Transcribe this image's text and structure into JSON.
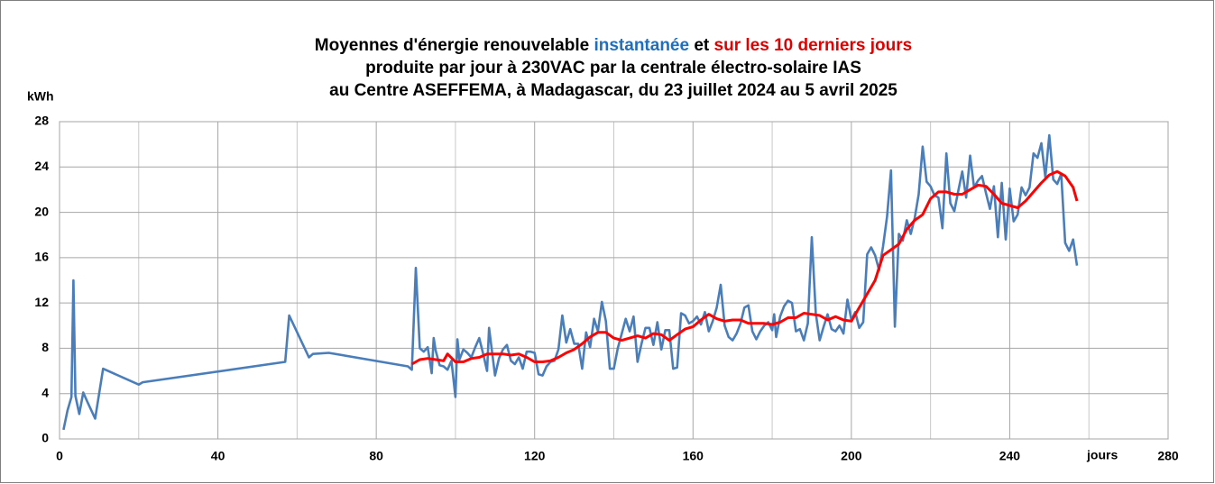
{
  "chart_data": {
    "type": "line",
    "title": {
      "line1": [
        "Moyennes d'énergie renouvelable",
        "instantanée",
        "et",
        "sur les 10 derniers jours"
      ],
      "line2": "produite par jour à 230VAC par la centrale électro-solaire  IAS",
      "line3": "au Centre ASEFFEMA, à Madagascar, du 23 juillet 2024 au 5 avril 2025"
    },
    "y_label": "kWh",
    "x_label": "jours",
    "xlim": [
      0,
      280
    ],
    "xticks": [
      0,
      40,
      80,
      120,
      160,
      200,
      240,
      280
    ],
    "x_minor_grid": [
      20,
      60,
      100,
      140,
      180,
      220,
      260
    ],
    "ylim": [
      0,
      28
    ],
    "yticks": [
      0,
      4,
      8,
      12,
      16,
      20,
      24,
      28
    ],
    "grid": true,
    "series": [
      {
        "color": "#4a7ebb",
        "x": [
          1,
          2,
          3,
          3.5,
          4,
          5,
          6,
          7,
          9,
          11,
          20,
          21,
          57,
          58,
          63,
          64,
          68,
          88,
          89,
          90,
          91,
          92,
          93,
          94,
          94.5,
          95,
          96,
          97,
          98,
          99,
          100,
          100.5,
          101,
          102,
          103,
          104,
          105,
          106,
          107,
          108,
          108.5,
          110,
          111,
          112,
          113,
          114,
          115,
          116,
          117,
          118,
          119,
          120,
          121,
          122,
          123,
          124,
          125,
          126,
          127,
          128,
          129,
          130,
          131,
          132,
          133,
          134,
          135,
          136,
          137,
          138,
          139,
          140,
          141,
          142,
          143,
          144,
          145,
          146,
          147,
          148,
          149,
          150,
          151,
          152,
          153,
          154,
          155,
          156,
          157,
          158,
          159,
          160,
          161,
          162,
          163,
          164,
          165,
          166,
          167,
          168,
          169,
          170,
          171,
          172,
          173,
          174,
          175,
          176,
          177,
          178,
          179,
          180,
          180.5,
          181,
          182,
          183,
          184,
          185,
          186,
          187,
          188,
          189,
          190,
          191,
          192,
          193,
          194,
          195,
          196,
          197,
          198,
          199,
          200,
          201,
          202,
          203,
          204,
          205,
          206,
          207,
          208,
          209,
          210,
          211,
          212,
          213,
          214,
          215,
          216,
          217,
          218,
          219,
          220,
          221,
          222,
          223,
          224,
          225,
          226,
          227,
          228,
          229,
          230,
          231,
          232,
          233,
          234,
          235,
          236,
          237,
          238,
          239,
          240,
          241,
          242,
          243,
          244,
          245,
          246,
          247,
          248,
          249,
          250,
          251,
          252,
          253,
          254,
          255,
          256,
          257
        ],
        "values": [
          0.8,
          2.5,
          3.7,
          14,
          3.8,
          2.2,
          4.1,
          3.3,
          1.8,
          6.2,
          4.8,
          5.0,
          6.8,
          10.9,
          7.2,
          7.5,
          7.6,
          6.4,
          6.1,
          15.1,
          8.0,
          7.7,
          8.1,
          5.8,
          8.9,
          7.8,
          6.5,
          6.4,
          6.1,
          6.9,
          3.7,
          8.8,
          7.0,
          7.9,
          7.6,
          7.2,
          8.1,
          8.9,
          7.5,
          6.0,
          9.8,
          5.6,
          7.1,
          7.9,
          8.3,
          6.9,
          6.6,
          7.2,
          6.2,
          7.7,
          7.7,
          7.6,
          5.7,
          5.6,
          6.4,
          6.8,
          6.9,
          7.9,
          10.9,
          8.5,
          9.7,
          8.4,
          8.4,
          6.2,
          9.4,
          8.1,
          10.6,
          9.5,
          12.1,
          10.4,
          6.2,
          6.2,
          8.0,
          9.3,
          10.6,
          9.5,
          10.8,
          6.8,
          8.4,
          9.8,
          9.8,
          8.3,
          10.3,
          7.9,
          9.6,
          9.6,
          6.2,
          6.3,
          11.1,
          10.9,
          10.2,
          10.4,
          10.8,
          10.1,
          11.2,
          9.5,
          10.4,
          11.6,
          13.6,
          10.0,
          9.0,
          8.7,
          9.3,
          10.2,
          11.6,
          11.8,
          9.5,
          8.8,
          9.5,
          10.0,
          10.3,
          9.6,
          11.0,
          9.0,
          10.8,
          11.7,
          12.2,
          12.0,
          9.5,
          9.7,
          8.7,
          10.2,
          17.8,
          11.1,
          8.7,
          9.9,
          11.0,
          9.7,
          9.5,
          10.0,
          9.3,
          12.3,
          10.5,
          11.2,
          9.8,
          10.3,
          16.3,
          16.9,
          16.2,
          14.9,
          17.0,
          19.6,
          23.7,
          9.9,
          18.1,
          17.5,
          19.3,
          18.1,
          19.5,
          21.6,
          25.8,
          22.7,
          22.3,
          21.5,
          21.3,
          18.6,
          25.2,
          20.8,
          20.1,
          21.9,
          23.6,
          21.3,
          25.0,
          22.2,
          22.8,
          23.2,
          21.7,
          20.3,
          22.3,
          17.8,
          22.6,
          17.6,
          22.1,
          19.2,
          19.8,
          22.2,
          21.5,
          22.2,
          25.2,
          24.8,
          26.1,
          23.1,
          26.8,
          22.9,
          22.5,
          23.4,
          17.3,
          16.6,
          17.6,
          15.3
        ]
      },
      {
        "color": "#ff0000",
        "x": [
          89,
          91,
          93,
          95,
          97,
          98,
          100,
          102,
          104,
          106,
          108,
          110,
          112,
          114,
          116,
          118,
          120,
          122,
          124,
          126,
          128,
          130,
          132,
          134,
          136,
          138,
          140,
          142,
          144,
          146,
          148,
          150,
          152,
          154,
          156,
          158,
          160,
          162,
          164,
          166,
          168,
          170,
          172,
          174,
          176,
          178,
          180,
          182,
          184,
          186,
          188,
          190,
          192,
          194,
          196,
          198,
          200,
          202,
          204,
          206,
          208,
          210,
          212,
          214,
          216,
          218,
          220,
          222,
          224,
          226,
          228,
          230,
          232,
          234,
          236,
          238,
          240,
          242,
          244,
          246,
          248,
          250,
          252,
          254,
          256,
          257
        ],
        "values": [
          6.6,
          7.0,
          7.1,
          7.0,
          6.9,
          7.5,
          6.8,
          6.8,
          7.1,
          7.2,
          7.5,
          7.5,
          7.5,
          7.4,
          7.5,
          7.2,
          6.8,
          6.8,
          6.9,
          7.2,
          7.6,
          7.9,
          8.4,
          9.0,
          9.4,
          9.4,
          8.9,
          8.7,
          8.9,
          9.1,
          8.9,
          9.3,
          9.2,
          8.7,
          9.2,
          9.7,
          9.9,
          10.5,
          11.0,
          10.6,
          10.4,
          10.5,
          10.5,
          10.2,
          10.2,
          10.2,
          10.1,
          10.3,
          10.7,
          10.7,
          11.1,
          11.0,
          10.9,
          10.5,
          10.8,
          10.5,
          10.4,
          11.6,
          12.8,
          14.0,
          16.2,
          16.7,
          17.2,
          18.5,
          19.3,
          19.8,
          21.2,
          21.8,
          21.8,
          21.6,
          21.6,
          22.0,
          22.4,
          22.3,
          21.6,
          20.8,
          20.6,
          20.4,
          21.0,
          21.8,
          22.6,
          23.3,
          23.6,
          23.2,
          22.2,
          21.0
        ]
      }
    ]
  }
}
